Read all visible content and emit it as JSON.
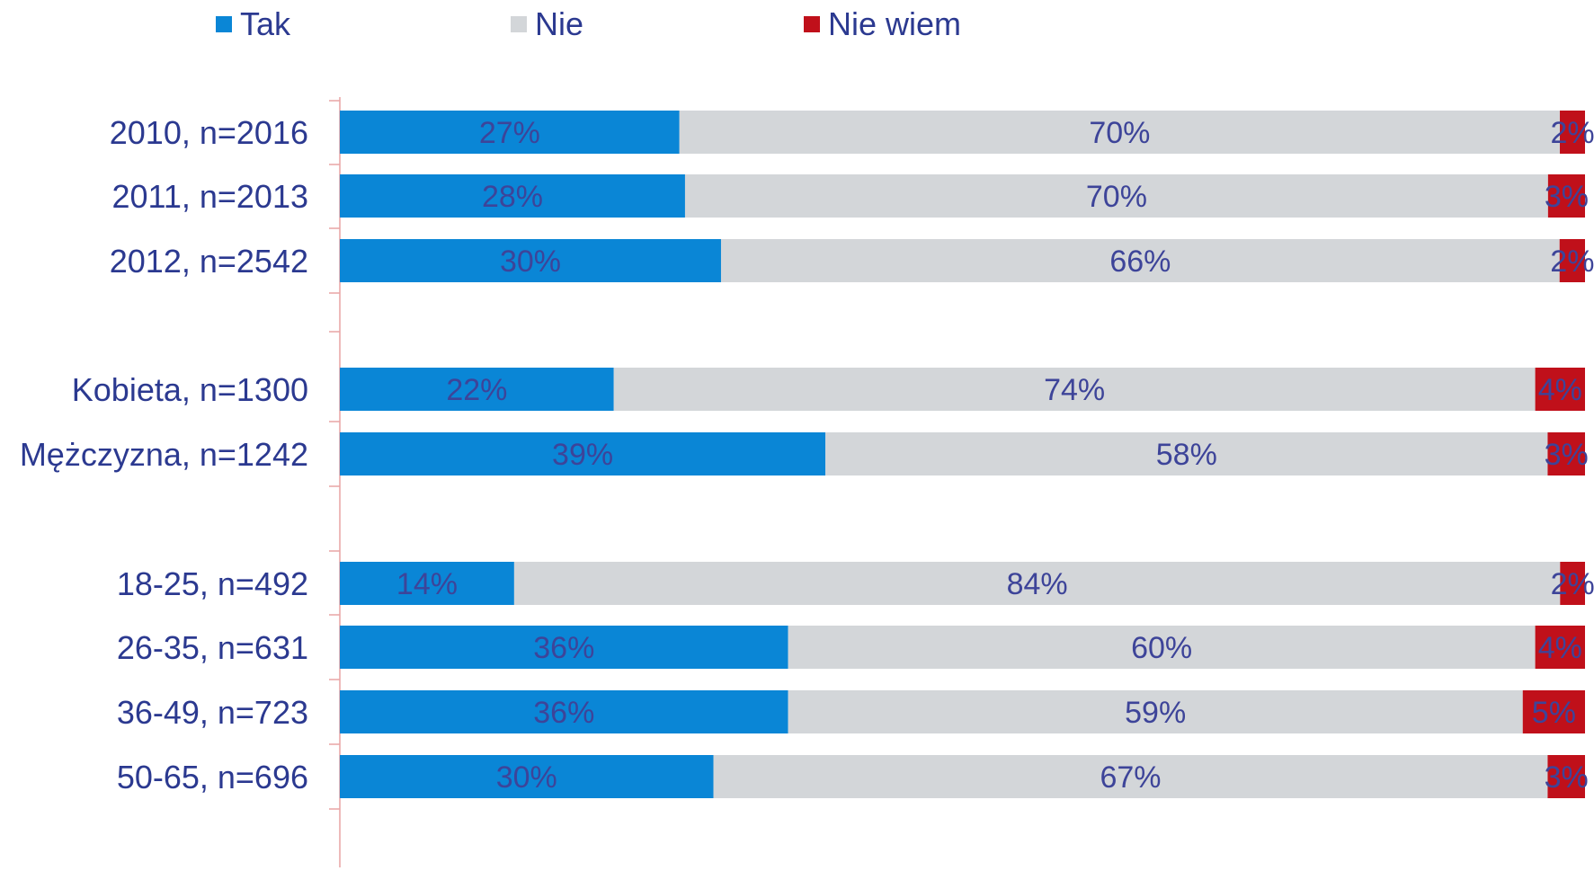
{
  "chart_data": {
    "type": "bar",
    "orientation": "horizontal",
    "stacked": true,
    "normalized": true,
    "legend_position": "top",
    "categories": [
      "2010, n=2016",
      "2011, n=2013",
      "2012, n=2542",
      "Kobieta, n=1300",
      "Mężczyzna, n=1242",
      "18-25, n=492",
      "26-35, n=631",
      "36-49, n=723",
      "50-65, n=696"
    ],
    "groups": [
      [
        "2010, n=2016",
        "2011, n=2013",
        "2012, n=2542"
      ],
      [
        "Kobieta, n=1300",
        "Mężczyzna, n=1242"
      ],
      [
        "18-25, n=492",
        "26-35, n=631",
        "36-49, n=723",
        "50-65, n=696"
      ]
    ],
    "series": [
      {
        "name": "Tak",
        "color": "#0a86d6",
        "values": [
          27,
          28,
          30,
          22,
          39,
          14,
          36,
          36,
          30
        ]
      },
      {
        "name": "Nie",
        "color": "#d3d6d9",
        "values": [
          70,
          70,
          66,
          74,
          58,
          84,
          60,
          59,
          67
        ]
      },
      {
        "name": "Nie wiem",
        "color": "#c0101a",
        "values": [
          2,
          3,
          2,
          4,
          3,
          2,
          4,
          5,
          3
        ]
      }
    ],
    "value_suffix": "%",
    "axis_color": "#e8a4a4"
  }
}
